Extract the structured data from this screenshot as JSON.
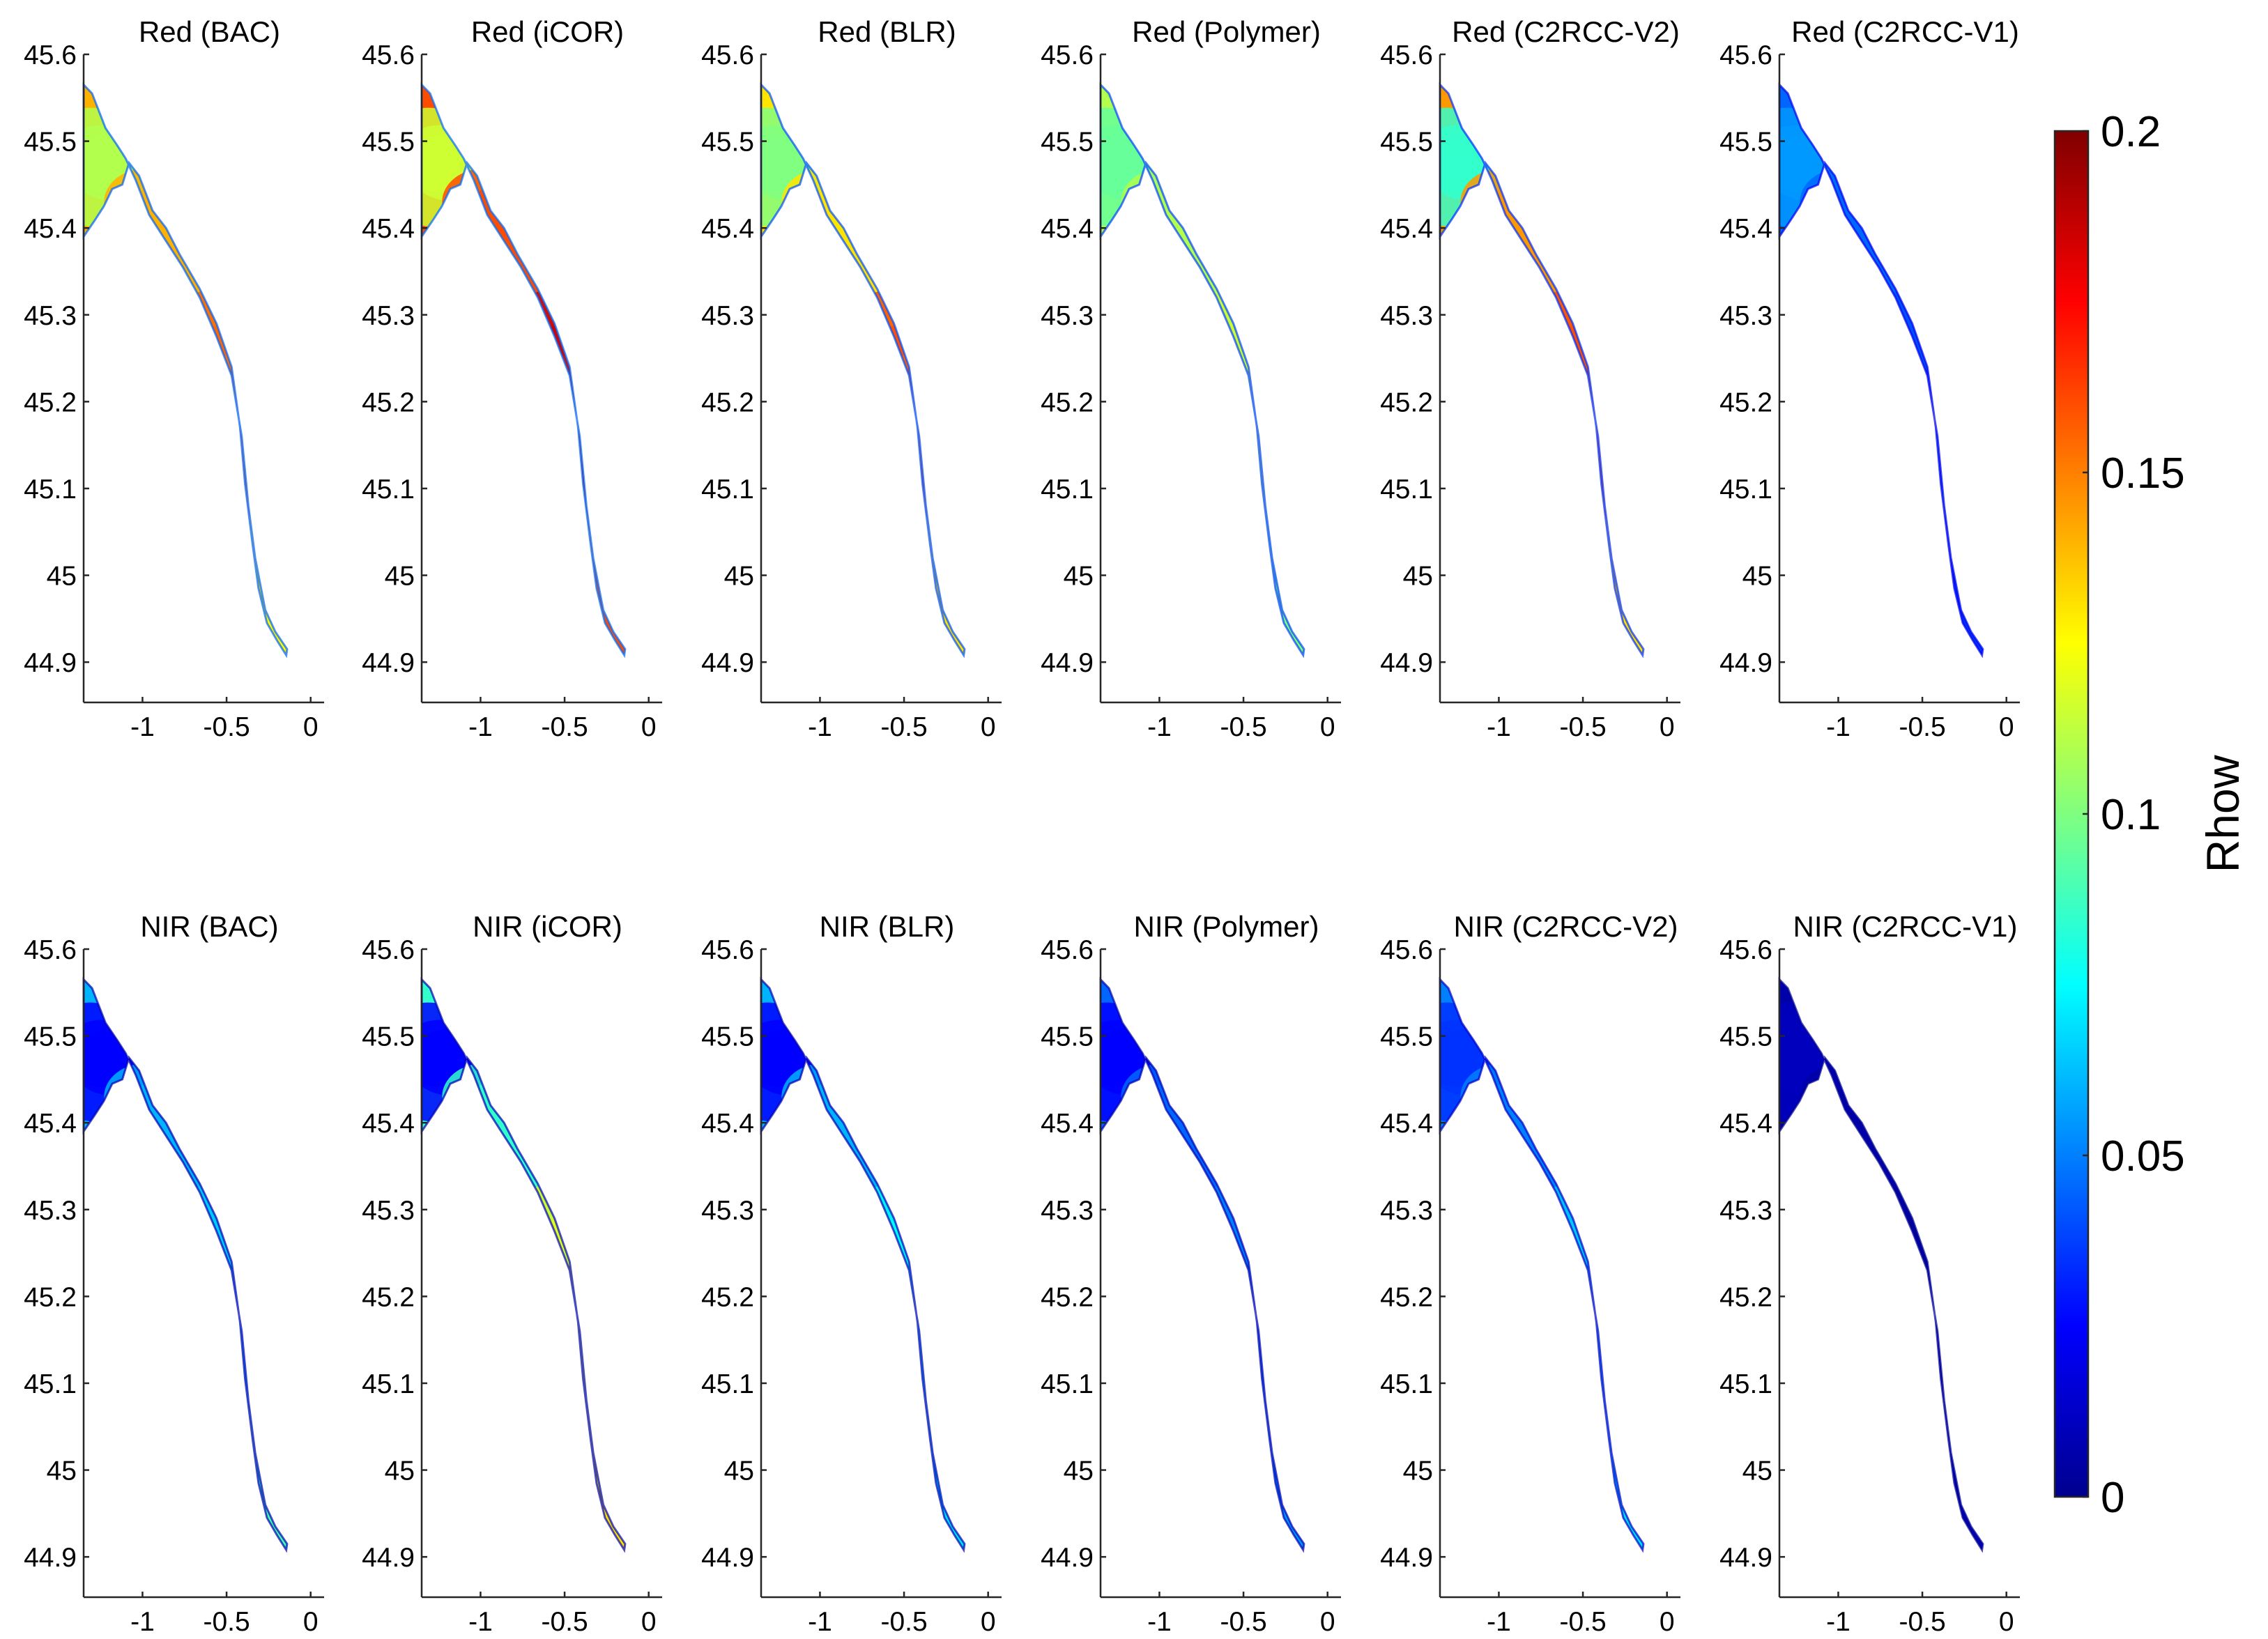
{
  "chart_data": {
    "type": "heatmap",
    "description_kind": "small-multiples map panels of water reflectance along an estuary",
    "x_ticks": [
      -1,
      -0.5,
      0
    ],
    "x_tick_labels": [
      "-1",
      "-0.5",
      "0"
    ],
    "xlim": [
      -1.35,
      0.08
    ],
    "y_ticks": [
      44.9,
      45,
      45.1,
      45.2,
      45.3,
      45.4,
      45.5,
      45.6
    ],
    "y_tick_labels": [
      "44.9",
      "45",
      "45.1",
      "45.2",
      "45.3",
      "45.4",
      "45.5",
      "45.6"
    ],
    "ylim": [
      44.86,
      45.6
    ],
    "panels": [
      {
        "title": "Red (BAC)",
        "band": "Red",
        "method": "BAC",
        "levels": {
          "west": 0.11,
          "mid": 0.14,
          "south": 0.155,
          "tail": 0.125
        }
      },
      {
        "title": "Red (iCOR)",
        "band": "Red",
        "method": "iCOR",
        "levels": {
          "west": 0.115,
          "mid": 0.16,
          "south": 0.185,
          "tail": 0.16
        }
      },
      {
        "title": "Red (BLR)",
        "band": "Red",
        "method": "BLR",
        "levels": {
          "west": 0.1,
          "mid": 0.13,
          "south": 0.16,
          "tail": 0.13
        }
      },
      {
        "title": "Red (Polymer)",
        "band": "Red",
        "method": "Polymer",
        "levels": {
          "west": 0.095,
          "mid": 0.11,
          "south": 0.115,
          "tail": 0.1
        }
      },
      {
        "title": "Red (C2RCC-V2)",
        "band": "Red",
        "method": "C2RCC-V2",
        "levels": {
          "west": 0.085,
          "mid": 0.145,
          "south": 0.16,
          "tail": 0.13
        }
      },
      {
        "title": "Red (C2RCC-V1)",
        "band": "Red",
        "method": "C2RCC-V1",
        "levels": {
          "west": 0.055,
          "mid": 0.045,
          "south": 0.04,
          "tail": 0.035
        }
      },
      {
        "title": "NIR (BAC)",
        "band": "NIR",
        "method": "BAC",
        "levels": {
          "west": 0.025,
          "mid": 0.06,
          "south": 0.065,
          "tail": 0.09
        }
      },
      {
        "title": "NIR (iCOR)",
        "band": "NIR",
        "method": "iCOR",
        "levels": {
          "west": 0.025,
          "mid": 0.085,
          "south": 0.12,
          "tail": 0.13
        }
      },
      {
        "title": "NIR (BLR)",
        "band": "NIR",
        "method": "BLR",
        "levels": {
          "west": 0.025,
          "mid": 0.06,
          "south": 0.075,
          "tail": 0.07
        }
      },
      {
        "title": "NIR (Polymer)",
        "band": "NIR",
        "method": "Polymer",
        "levels": {
          "west": 0.025,
          "mid": 0.045,
          "south": 0.05,
          "tail": 0.055
        }
      },
      {
        "title": "NIR (C2RCC-V2)",
        "band": "NIR",
        "method": "C2RCC-V2",
        "levels": {
          "west": 0.035,
          "mid": 0.05,
          "south": 0.065,
          "tail": 0.07
        }
      },
      {
        "title": "NIR (C2RCC-V1)",
        "band": "NIR",
        "method": "C2RCC-V1",
        "levels": {
          "west": 0.012,
          "mid": 0.008,
          "south": 0.006,
          "tail": 0.01
        }
      }
    ],
    "colorbar": {
      "label": "Rhow",
      "min": 0,
      "max": 0.2,
      "ticks": [
        0,
        0.05,
        0.1,
        0.15,
        0.2
      ],
      "tick_labels": [
        "0",
        "0.05",
        "0.1",
        "0.15",
        "0.2"
      ],
      "colormap": "jet"
    },
    "estuary_outline_lonlat": {
      "north_edge": [
        [
          -1.35,
          45.565
        ],
        [
          -1.3,
          45.555
        ],
        [
          -1.22,
          45.515
        ],
        [
          -1.15,
          45.495
        ],
        [
          -1.1,
          45.48
        ],
        [
          -1.04,
          45.455
        ],
        [
          -0.96,
          45.415
        ],
        [
          -0.86,
          45.385
        ],
        [
          -0.76,
          45.355
        ],
        [
          -0.66,
          45.32
        ],
        [
          -0.56,
          45.275
        ],
        [
          -0.47,
          45.23
        ],
        [
          -0.41,
          45.16
        ],
        [
          -0.37,
          45.08
        ],
        [
          -0.33,
          45.02
        ],
        [
          -0.27,
          44.96
        ],
        [
          -0.21,
          44.935
        ],
        [
          -0.14,
          44.915
        ]
      ],
      "south_edge": [
        [
          -0.145,
          44.908
        ],
        [
          -0.2,
          44.925
        ],
        [
          -0.26,
          44.945
        ],
        [
          -0.31,
          44.985
        ],
        [
          -0.345,
          45.035
        ],
        [
          -0.39,
          45.105
        ],
        [
          -0.42,
          45.17
        ],
        [
          -0.47,
          45.24
        ],
        [
          -0.56,
          45.29
        ],
        [
          -0.66,
          45.33
        ],
        [
          -0.78,
          45.37
        ],
        [
          -0.86,
          45.4
        ],
        [
          -0.94,
          45.42
        ],
        [
          -1.02,
          45.46
        ],
        [
          -1.08,
          45.475
        ],
        [
          -1.12,
          45.45
        ],
        [
          -1.18,
          45.445
        ],
        [
          -1.23,
          45.425
        ],
        [
          -1.28,
          45.41
        ],
        [
          -1.35,
          45.39
        ]
      ]
    }
  }
}
